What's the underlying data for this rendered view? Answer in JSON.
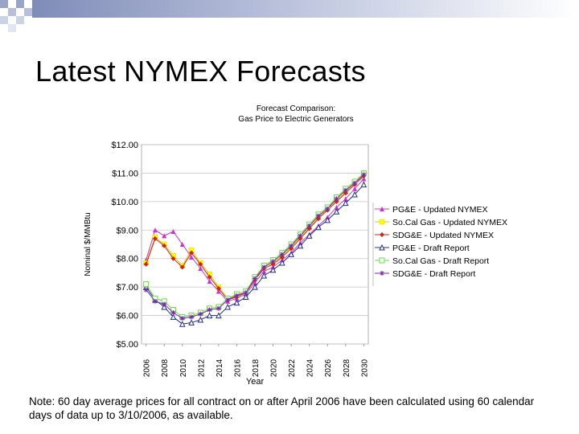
{
  "slide": {
    "title": "Latest NYMEX Forecasts",
    "note": "Note: 60 day average prices for all contract on or after April 2006 have been calculated using 60 calendar days of data up to 3/10/2006, as available."
  },
  "chart_data": {
    "type": "line",
    "title": "Forecast Comparison:",
    "subtitle": "Gas Price to Electric Generators",
    "xlabel": "Year",
    "ylabel": "Nominal $/MMBtu",
    "x": [
      2006,
      2007,
      2008,
      2009,
      2010,
      2011,
      2012,
      2013,
      2014,
      2015,
      2016,
      2017,
      2018,
      2019,
      2020,
      2021,
      2022,
      2023,
      2024,
      2025,
      2026,
      2027,
      2028,
      2029,
      2030
    ],
    "xticks": [
      "2006",
      "2008",
      "2010",
      "2012",
      "2014",
      "2016",
      "2018",
      "2020",
      "2022",
      "2024",
      "2026",
      "2028",
      "2030"
    ],
    "xlim": [
      2005.5,
      2030.5
    ],
    "ylim": [
      5,
      12
    ],
    "yticks": [
      "$5.00",
      "$6.00",
      "$7.00",
      "$8.00",
      "$9.00",
      "$10.00",
      "$11.00",
      "$12.00"
    ],
    "grid": "horizontal",
    "legend_position": "right",
    "series": [
      {
        "name": "PG&E - Updated NYMEX",
        "color": "#cc33cc",
        "marker": "triangle",
        "values": [
          7.95,
          9.0,
          8.8,
          8.95,
          8.5,
          8.05,
          7.65,
          7.2,
          6.85,
          6.5,
          6.6,
          6.75,
          7.15,
          7.55,
          7.7,
          7.95,
          8.2,
          8.55,
          8.85,
          9.15,
          9.45,
          9.8,
          10.1,
          10.45,
          10.8
        ]
      },
      {
        "name": "So.Cal Gas - Updated NYMEX",
        "color": "#ffff00",
        "marker": "square",
        "values": [
          7.85,
          8.75,
          8.5,
          8.1,
          7.75,
          8.3,
          7.85,
          7.45,
          7.0,
          6.6,
          6.7,
          6.85,
          7.3,
          7.7,
          7.85,
          8.1,
          8.4,
          8.75,
          9.1,
          9.45,
          9.75,
          10.05,
          10.35,
          10.65,
          11.0
        ]
      },
      {
        "name": "SDG&E - Updated NYMEX",
        "color": "#cc2222",
        "marker": "diamond",
        "values": [
          7.8,
          8.7,
          8.45,
          8.0,
          7.7,
          8.2,
          7.8,
          7.35,
          6.95,
          6.55,
          6.65,
          6.8,
          7.25,
          7.65,
          7.8,
          8.05,
          8.35,
          8.7,
          9.05,
          9.4,
          9.7,
          10.0,
          10.3,
          10.6,
          10.9
        ]
      },
      {
        "name": "PG&E - Draft Report",
        "color": "#1f2f8f",
        "marker": "triangle-open",
        "values": [
          7.0,
          6.55,
          6.3,
          5.95,
          5.7,
          5.75,
          5.85,
          6.0,
          6.0,
          6.3,
          6.45,
          6.65,
          7.0,
          7.4,
          7.6,
          7.85,
          8.15,
          8.45,
          8.8,
          9.1,
          9.35,
          9.65,
          9.95,
          10.25,
          10.6
        ]
      },
      {
        "name": "So.Cal Gas - Draft Report",
        "color": "#66dd44",
        "marker": "square-open",
        "values": [
          7.1,
          6.6,
          6.5,
          6.2,
          5.95,
          6.0,
          6.1,
          6.25,
          6.3,
          6.6,
          6.75,
          6.85,
          7.35,
          7.75,
          7.95,
          8.2,
          8.5,
          8.85,
          9.2,
          9.55,
          9.8,
          10.15,
          10.45,
          10.7,
          11.0
        ]
      },
      {
        "name": "SDG&E - Draft Report",
        "color": "#7a2aa8",
        "marker": "star",
        "values": [
          6.9,
          6.5,
          6.4,
          6.1,
          5.9,
          5.95,
          6.05,
          6.2,
          6.25,
          6.55,
          6.7,
          6.8,
          7.3,
          7.7,
          7.9,
          8.15,
          8.45,
          8.8,
          9.15,
          9.5,
          9.75,
          10.1,
          10.4,
          10.65,
          10.95
        ]
      }
    ]
  }
}
